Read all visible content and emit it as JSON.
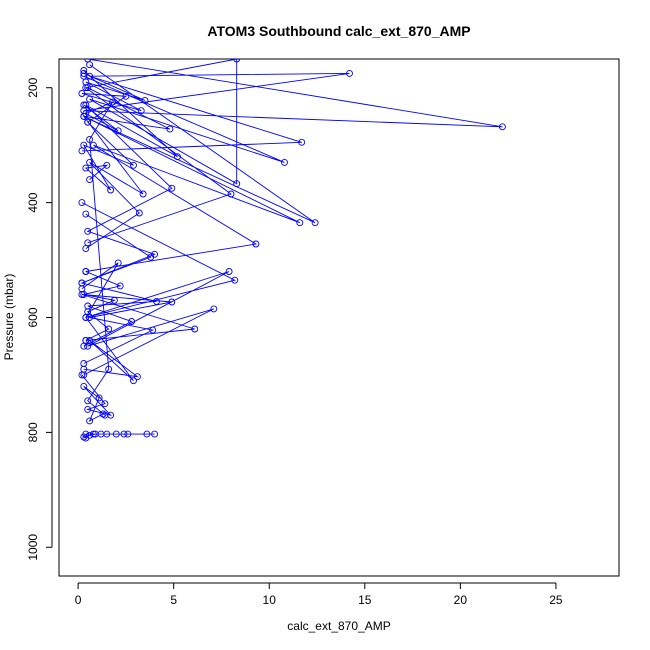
{
  "chart_data": {
    "type": "line",
    "title": "ATOM3 Southbound calc_ext_870_AMP",
    "xlabel": "calc_ext_870_AMP",
    "ylabel": "Pressure (mbar)",
    "xlim": [
      -1,
      28.3
    ],
    "ylim": [
      150,
      1050
    ],
    "y_reversed": true,
    "grid": false,
    "line_color": "#0000ff",
    "marker": "open-circle",
    "x_ticks": [
      0,
      5,
      10,
      15,
      20,
      25
    ],
    "x_tick_labels": [
      "0",
      "5",
      "10",
      "15",
      "20",
      "25"
    ],
    "y_ticks": [
      200,
      400,
      600,
      800,
      1000
    ],
    "y_tick_labels": [
      "200",
      "400",
      "600",
      "800",
      "1000"
    ],
    "series": [
      {
        "x": [
          0.4,
          1.2,
          0.8,
          4.0,
          2.6,
          2.0,
          3.6,
          2.4,
          1.5,
          0.9,
          0.6,
          0.3,
          0.4
        ],
        "y": [
          803,
          803,
          803,
          803,
          803,
          803,
          803,
          803,
          803,
          803,
          805,
          808,
          810
        ]
      },
      {
        "x": [
          0.5,
          22.2,
          0.3,
          14.2,
          0.6,
          11.7,
          0.2
        ],
        "y": [
          150,
          268,
          240,
          175,
          180,
          295,
          310
        ]
      },
      {
        "x": [
          0.6,
          12.4,
          0.3,
          11.6,
          0.8,
          9.3,
          0.4
        ],
        "y": [
          160,
          435,
          250,
          435,
          300,
          472,
          520
        ]
      },
      {
        "x": [
          0.3,
          10.8,
          0.6,
          8.3,
          8.3,
          0.4,
          8.0,
          0.5
        ],
        "y": [
          180,
          330,
          220,
          367,
          150,
          200,
          385,
          470
        ]
      },
      {
        "x": [
          0.2,
          8.2,
          0.4,
          7.9,
          0.5,
          7.1,
          0.3
        ],
        "y": [
          400,
          535,
          600,
          520,
          650,
          585,
          700
        ]
      },
      {
        "x": [
          0.4,
          6.1,
          0.2,
          4.9,
          0.6,
          3.9,
          0.3
        ],
        "y": [
          640,
          620,
          560,
          573,
          600,
          622,
          680
        ]
      },
      {
        "x": [
          0.3,
          5.2,
          0.4,
          4.9,
          0.5,
          4.0,
          0.2
        ],
        "y": [
          170,
          320,
          230,
          375,
          450,
          490,
          540
        ]
      },
      {
        "x": [
          0.5,
          4.8,
          0.3,
          3.4,
          0.6,
          3.2,
          0.4
        ],
        "y": [
          200,
          272,
          250,
          385,
          330,
          418,
          480
        ]
      },
      {
        "x": [
          0.4,
          3.8,
          0.2,
          4.1,
          0.5,
          2.8,
          0.3
        ],
        "y": [
          420,
          495,
          540,
          572,
          580,
          607,
          650
        ]
      },
      {
        "x": [
          0.3,
          3.1,
          0.6,
          2.9,
          0.4,
          2.1,
          0.2
        ],
        "y": [
          690,
          703,
          640,
          710,
          600,
          505,
          550
        ]
      },
      {
        "x": [
          0.5,
          2.9,
          0.3,
          1.7,
          0.4,
          1.5,
          0.6
        ],
        "y": [
          260,
          335,
          300,
          378,
          340,
          335,
          360
        ]
      },
      {
        "x": [
          0.3,
          2.1,
          0.4,
          1.8,
          0.6,
          1.6,
          0.5,
          1.4
        ],
        "y": [
          230,
          275,
          245,
          225,
          290,
          690,
          745,
          770
        ]
      },
      {
        "x": [
          0.2,
          1.4,
          0.5,
          1.7,
          0.3,
          1.1,
          0.6,
          1.3
        ],
        "y": [
          700,
          750,
          760,
          770,
          720,
          740,
          780,
          768
        ]
      },
      {
        "x": [
          0.4,
          2.2,
          0.3,
          1.9,
          0.5,
          1.6,
          0.4
        ],
        "y": [
          520,
          545,
          560,
          570,
          590,
          620,
          640
        ]
      },
      {
        "x": [
          0.3,
          3.5,
          0.4,
          3.3,
          0.2,
          2.5,
          0.5
        ],
        "y": [
          175,
          222,
          190,
          240,
          210,
          215,
          260
        ]
      }
    ]
  }
}
